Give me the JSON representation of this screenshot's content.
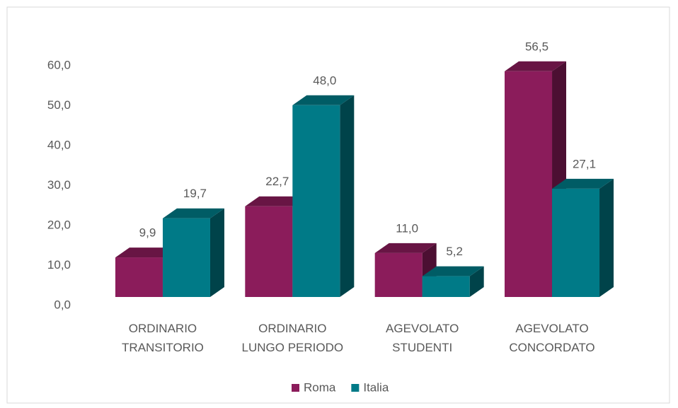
{
  "chart_data": {
    "type": "bar3d",
    "categories": [
      [
        "ORDINARIO",
        "TRANSITORIO"
      ],
      [
        "ORDINARIO",
        "LUNGO PERIODO"
      ],
      [
        "AGEVOLATO",
        "STUDENTI"
      ],
      [
        "AGEVOLATO",
        "CONCORDATO"
      ]
    ],
    "series": [
      {
        "name": "Roma",
        "color": "#8b1c5b",
        "values": [
          9.9,
          22.7,
          11.0,
          56.5
        ],
        "value_labels": [
          "9,9",
          "22,7",
          "11,0",
          "56,5"
        ]
      },
      {
        "name": "Italia",
        "color": "#007a87",
        "values": [
          19.7,
          48.0,
          5.2,
          27.1
        ],
        "value_labels": [
          "19,7",
          "48,0",
          "5,2",
          "27,1"
        ]
      }
    ],
    "ylim": [
      0,
      60
    ],
    "yticks": [
      {
        "value": 0,
        "label": "0,0"
      },
      {
        "value": 10,
        "label": "10,0"
      },
      {
        "value": 20,
        "label": "20,0"
      },
      {
        "value": 30,
        "label": "30,0"
      },
      {
        "value": 40,
        "label": "40,0"
      },
      {
        "value": 50,
        "label": "50,0"
      },
      {
        "value": 60,
        "label": "60,0"
      }
    ],
    "legend": "bottom"
  }
}
